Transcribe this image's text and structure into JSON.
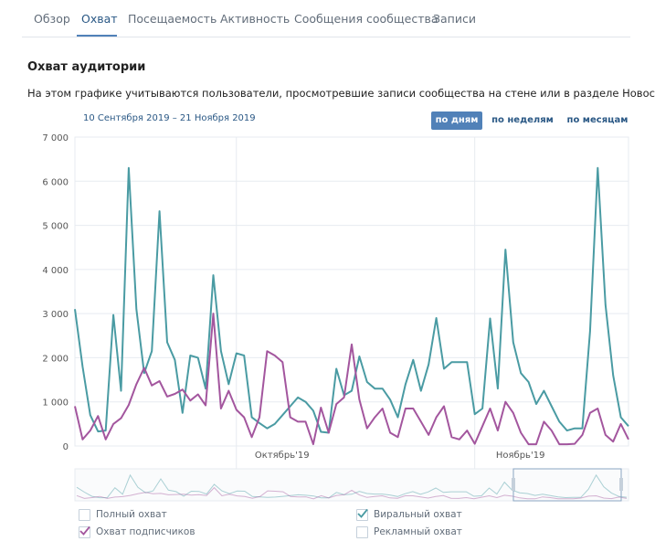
{
  "tabs": [
    {
      "label": "Обзор"
    },
    {
      "label": "Охват"
    },
    {
      "label": "Посещаемость"
    },
    {
      "label": "Активность"
    },
    {
      "label": "Сообщения сообщества"
    },
    {
      "label": "Записи"
    }
  ],
  "active_tab": "Охват",
  "section": {
    "title": "Охват аудитории",
    "description": "На этом графике учитываются пользователи, просмотревшие записи сообщества на стене или в разделе Новости."
  },
  "date_range": "10 Сентября 2019 – 21 Ноября 2019",
  "period_buttons": [
    {
      "label": "по дням",
      "active": true
    },
    {
      "label": "по неделям",
      "active": false
    },
    {
      "label": "по месяцам",
      "active": false
    }
  ],
  "legend": [
    {
      "label": "Полный охват",
      "checked": false,
      "color": "#5181b8"
    },
    {
      "label": "Охват подписчиков",
      "checked": true,
      "color": "#a3569e"
    },
    {
      "label": "Виральный охват",
      "checked": true,
      "color": "#4a9ba3"
    },
    {
      "label": "Рекламный охват",
      "checked": false,
      "color": "#8ab06b"
    }
  ],
  "colors": {
    "viral": "#4a9ba3",
    "subscribers": "#a3569e",
    "grid": "#e7ebf0",
    "accent": "#5181b8"
  },
  "chart_data": {
    "type": "line",
    "title": "Охват аудитории",
    "xlabel": "",
    "ylabel": "",
    "ylim": [
      0,
      7000
    ],
    "yticks": [
      "0",
      "1 000",
      "2 000",
      "3 000",
      "4 000",
      "5 000",
      "6 000",
      "7 000"
    ],
    "ytick_values": [
      0,
      1000,
      2000,
      3000,
      4000,
      5000,
      6000,
      7000
    ],
    "month_labels": [
      {
        "label": "Октябрь'19",
        "day_index": 21
      },
      {
        "label": "Ноябрь'19",
        "day_index": 52
      }
    ],
    "month_boundaries": [
      21,
      52
    ],
    "x": "daily, 10 Sep 2019 – 21 Nov 2019 (73 days)",
    "series": [
      {
        "name": "Виральный охват",
        "color": "#4a9ba3",
        "values": [
          3100,
          1800,
          700,
          330,
          350,
          2970,
          1250,
          6300,
          3100,
          1650,
          2150,
          5320,
          2350,
          1950,
          750,
          2050,
          2000,
          1300,
          3870,
          2150,
          1400,
          2100,
          2050,
          650,
          520,
          400,
          500,
          700,
          900,
          1100,
          1000,
          800,
          320,
          300,
          1750,
          1150,
          1250,
          2030,
          1450,
          1300,
          1300,
          1050,
          650,
          1400,
          1950,
          1250,
          1850,
          2900,
          1750,
          1900,
          1900,
          1900,
          720,
          850,
          2890,
          1300,
          4450,
          2350,
          1650,
          1450,
          950,
          1250,
          900,
          550,
          350,
          400,
          400,
          2600,
          6300,
          3200,
          1600,
          650,
          450
        ],
        "note": "approximate values read from chart"
      },
      {
        "name": "Охват подписчиков",
        "color": "#a3569e",
        "values": [
          900,
          150,
          350,
          680,
          150,
          500,
          630,
          930,
          1400,
          1770,
          1370,
          1470,
          1120,
          1180,
          1280,
          1030,
          1170,
          920,
          3000,
          850,
          1250,
          820,
          650,
          200,
          650,
          2150,
          2050,
          1900,
          650,
          550,
          550,
          40,
          870,
          300,
          950,
          1100,
          2300,
          1050,
          400,
          650,
          850,
          300,
          200,
          850,
          850,
          550,
          250,
          650,
          900,
          200,
          150,
          350,
          50,
          450,
          850,
          350,
          1000,
          750,
          300,
          40,
          40,
          550,
          350,
          40,
          40,
          50,
          250,
          750,
          850,
          250,
          100,
          500,
          150
        ],
        "note": "approximate values read from chart"
      }
    ]
  }
}
